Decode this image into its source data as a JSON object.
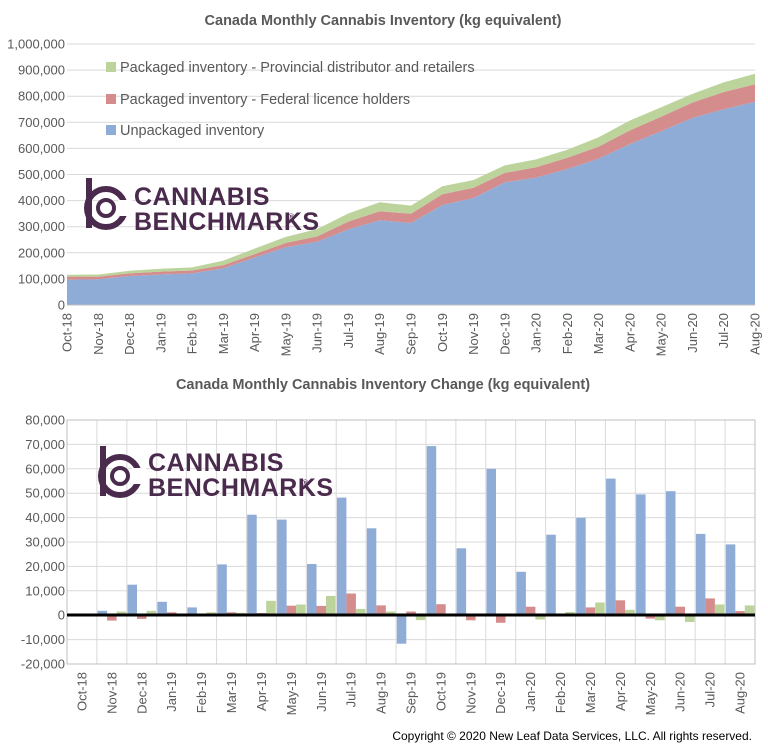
{
  "chart_data": [
    {
      "type": "area",
      "stacked": true,
      "title": "Canada Monthly Cannabis Inventory (kg equivalent)",
      "categories": [
        "Oct-18",
        "Nov-18",
        "Dec-18",
        "Jan-19",
        "Feb-19",
        "Mar-19",
        "Apr-19",
        "May-19",
        "Jun-19",
        "Jul-19",
        "Aug-19",
        "Sep-19",
        "Oct-19",
        "Nov-19",
        "Dec-19",
        "Jan-20",
        "Feb-20",
        "Mar-20",
        "Apr-20",
        "May-20",
        "Jun-20",
        "Jul-20",
        "Aug-20"
      ],
      "ylim": [
        0,
        1000000
      ],
      "yticks": [
        "0",
        "100,000",
        "200,000",
        "300,000",
        "400,000",
        "500,000",
        "600,000",
        "700,000",
        "800,000",
        "900,000",
        "1,000,000"
      ],
      "legend_position": "top-left",
      "series": [
        {
          "name": "Unpackaged inventory",
          "color": "#8eacd6",
          "values": [
            97000,
            99000,
            111000,
            117000,
            121000,
            141000,
            182000,
            221000,
            242000,
            290000,
            325000,
            314000,
            383000,
            410000,
            470000,
            488000,
            521000,
            561000,
            617000,
            666000,
            717000,
            750000,
            779000
          ]
        },
        {
          "name": "Packaged inventory - Federal licence holders",
          "color": "#d58c8c",
          "values": [
            12000,
            10000,
            10000,
            11000,
            11000,
            12000,
            13000,
            17000,
            21000,
            30000,
            34000,
            36000,
            41000,
            39000,
            36000,
            40000,
            43000,
            46000,
            52000,
            56000,
            59000,
            66000,
            67000
          ]
        },
        {
          "name": "Packaged inventory - Provincial distributor and retailers",
          "color": "#bcd49c",
          "values": [
            7000,
            8000,
            10000,
            11000,
            12000,
            17000,
            21000,
            23000,
            28000,
            31000,
            35000,
            31000,
            31000,
            30000,
            29000,
            30000,
            31000,
            36000,
            38000,
            36000,
            33000,
            37000,
            40000
          ]
        }
      ]
    },
    {
      "type": "bar",
      "title": "Canada Monthly Cannabis Inventory Change (kg equivalent)",
      "categories": [
        "Oct-18",
        "Nov-18",
        "Dec-18",
        "Jan-19",
        "Feb-19",
        "Mar-19",
        "Apr-19",
        "May-19",
        "Jun-19",
        "Jul-19",
        "Aug-19",
        "Sep-19",
        "Oct-19",
        "Nov-19",
        "Dec-19",
        "Jan-20",
        "Feb-20",
        "Mar-20",
        "Apr-20",
        "May-20",
        "Jun-20",
        "Jul-20",
        "Aug-20"
      ],
      "ylim": [
        -20000,
        80000
      ],
      "yticks": [
        "-20,000",
        "-10,000",
        "0",
        "10,000",
        "20,000",
        "30,000",
        "40,000",
        "50,000",
        "60,000",
        "70,000",
        "80,000"
      ],
      "series": [
        {
          "name": "Unpackaged inventory",
          "color": "#8eacd6",
          "values": [
            0,
            1800,
            12500,
            5500,
            3200,
            20800,
            41200,
            39200,
            21000,
            48200,
            35600,
            -11700,
            69300,
            27400,
            60000,
            17800,
            33000,
            39900,
            56000,
            49500,
            50800,
            33300,
            29000
          ]
        },
        {
          "name": "Packaged inventory - Federal licence holders",
          "color": "#d58c8c",
          "values": [
            0,
            -2200,
            -1500,
            1200,
            500,
            1200,
            900,
            3900,
            3800,
            8900,
            4000,
            1500,
            4500,
            -2100,
            -3100,
            3500,
            300,
            3200,
            6100,
            -1400,
            3500,
            6900,
            1700
          ]
        },
        {
          "name": "Packaged inventory - Provincial distributor and retailers",
          "color": "#bcd49c",
          "values": [
            0,
            1500,
            1800,
            500,
            1200,
            1000,
            5900,
            4400,
            7900,
            2600,
            1500,
            -2000,
            600,
            -500,
            700,
            -1800,
            1300,
            5200,
            2200,
            -2100,
            -2800,
            4400,
            4000
          ]
        }
      ]
    }
  ],
  "logo": {
    "line1": "CANNABIS",
    "line2": "BENCHMARKS",
    "mark": "®",
    "color": "#4a2a4d"
  },
  "copyright": "Copyright © 2020 New Leaf Data Services, LLC. All rights reserved."
}
